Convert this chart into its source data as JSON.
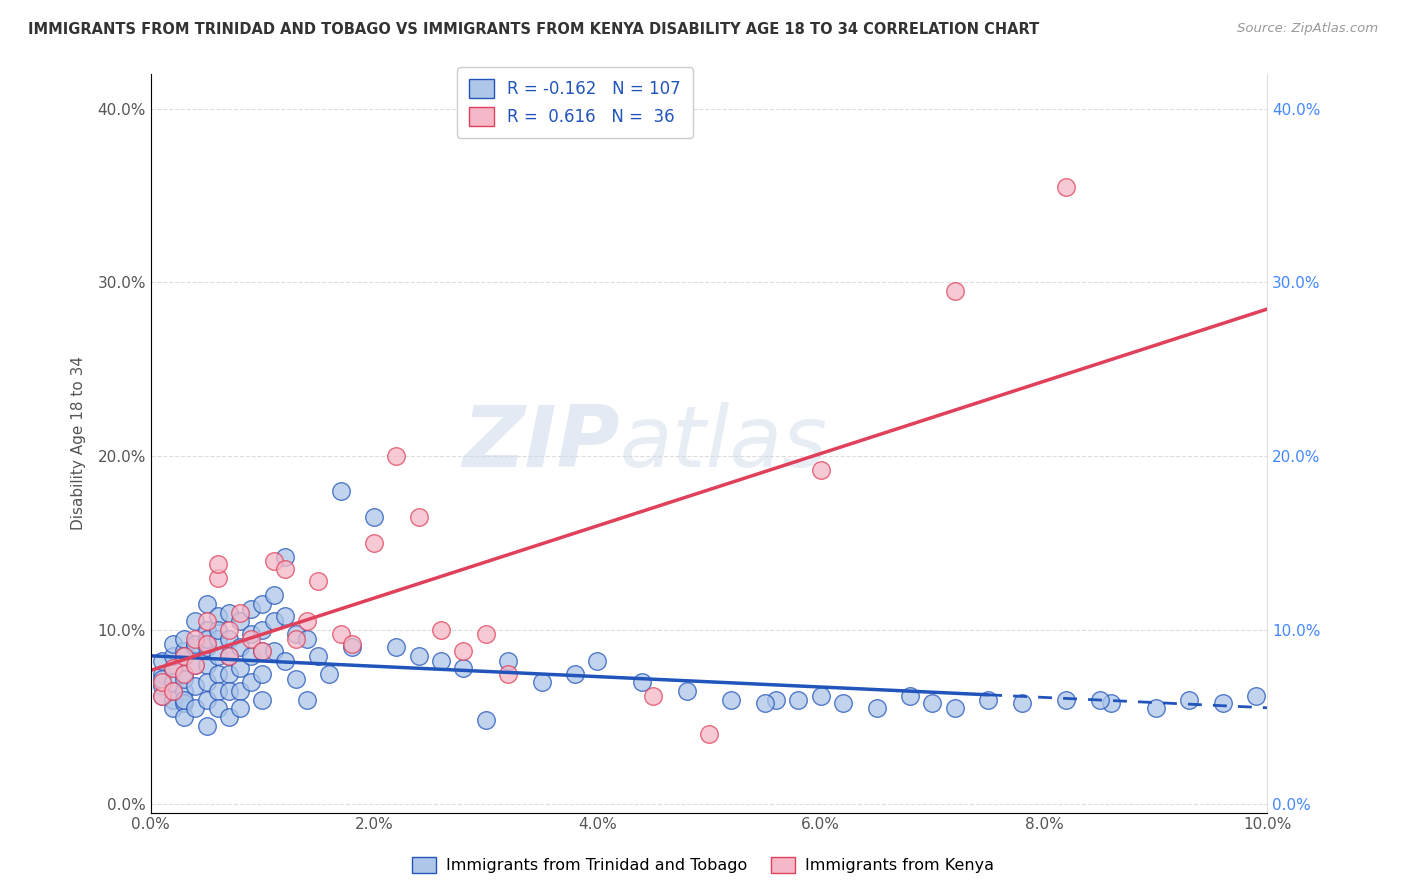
{
  "title": "IMMIGRANTS FROM TRINIDAD AND TOBAGO VS IMMIGRANTS FROM KENYA DISABILITY AGE 18 TO 34 CORRELATION CHART",
  "source": "Source: ZipAtlas.com",
  "ylabel": "Disability Age 18 to 34",
  "legend_label1": "Immigrants from Trinidad and Tobago",
  "legend_label2": "Immigrants from Kenya",
  "R1": -0.162,
  "N1": 107,
  "R2": 0.616,
  "N2": 36,
  "color1": "#aec6e8",
  "color2": "#f5b8c8",
  "line_color1": "#2255bb",
  "line_color2": "#e0405a",
  "xlim": [
    0.0,
    0.1
  ],
  "ylim": [
    -0.005,
    0.42
  ],
  "xticks": [
    0.0,
    0.02,
    0.04,
    0.06,
    0.08,
    0.1
  ],
  "yticks": [
    0.0,
    0.1,
    0.2,
    0.3,
    0.4
  ],
  "background_color": "#ffffff",
  "watermark_zip": "ZIP",
  "watermark_atlas": "atlas",
  "series1_x": [
    0.001,
    0.001,
    0.001,
    0.001,
    0.001,
    0.002,
    0.002,
    0.002,
    0.002,
    0.002,
    0.002,
    0.002,
    0.003,
    0.003,
    0.003,
    0.003,
    0.003,
    0.003,
    0.003,
    0.003,
    0.003,
    0.004,
    0.004,
    0.004,
    0.004,
    0.004,
    0.004,
    0.005,
    0.005,
    0.005,
    0.005,
    0.005,
    0.005,
    0.005,
    0.005,
    0.006,
    0.006,
    0.006,
    0.006,
    0.006,
    0.006,
    0.006,
    0.007,
    0.007,
    0.007,
    0.007,
    0.007,
    0.007,
    0.008,
    0.008,
    0.008,
    0.008,
    0.008,
    0.009,
    0.009,
    0.009,
    0.009,
    0.01,
    0.01,
    0.01,
    0.01,
    0.01,
    0.011,
    0.011,
    0.011,
    0.012,
    0.012,
    0.012,
    0.013,
    0.013,
    0.014,
    0.014,
    0.015,
    0.016,
    0.017,
    0.018,
    0.02,
    0.022,
    0.024,
    0.026,
    0.028,
    0.03,
    0.032,
    0.035,
    0.038,
    0.04,
    0.044,
    0.048,
    0.052,
    0.056,
    0.06,
    0.065,
    0.07,
    0.075,
    0.058,
    0.062,
    0.068,
    0.072,
    0.078,
    0.082,
    0.086,
    0.09,
    0.093,
    0.096,
    0.099,
    0.055,
    0.085
  ],
  "series1_y": [
    0.068,
    0.075,
    0.082,
    0.072,
    0.062,
    0.078,
    0.07,
    0.065,
    0.06,
    0.055,
    0.085,
    0.092,
    0.088,
    0.075,
    0.065,
    0.058,
    0.05,
    0.095,
    0.085,
    0.072,
    0.06,
    0.09,
    0.08,
    0.068,
    0.055,
    0.105,
    0.092,
    0.1,
    0.09,
    0.08,
    0.07,
    0.06,
    0.045,
    0.115,
    0.095,
    0.108,
    0.095,
    0.085,
    0.075,
    0.065,
    0.055,
    0.1,
    0.11,
    0.095,
    0.085,
    0.075,
    0.065,
    0.05,
    0.105,
    0.09,
    0.078,
    0.065,
    0.055,
    0.112,
    0.098,
    0.085,
    0.07,
    0.115,
    0.1,
    0.088,
    0.075,
    0.06,
    0.12,
    0.105,
    0.088,
    0.142,
    0.108,
    0.082,
    0.098,
    0.072,
    0.095,
    0.06,
    0.085,
    0.075,
    0.18,
    0.09,
    0.165,
    0.09,
    0.085,
    0.082,
    0.078,
    0.048,
    0.082,
    0.07,
    0.075,
    0.082,
    0.07,
    0.065,
    0.06,
    0.06,
    0.062,
    0.055,
    0.058,
    0.06,
    0.06,
    0.058,
    0.062,
    0.055,
    0.058,
    0.06,
    0.058,
    0.055,
    0.06,
    0.058,
    0.062,
    0.058,
    0.06
  ],
  "series2_x": [
    0.001,
    0.001,
    0.002,
    0.002,
    0.003,
    0.003,
    0.004,
    0.004,
    0.005,
    0.005,
    0.006,
    0.006,
    0.007,
    0.007,
    0.008,
    0.009,
    0.01,
    0.011,
    0.012,
    0.013,
    0.014,
    0.015,
    0.017,
    0.018,
    0.02,
    0.022,
    0.024,
    0.026,
    0.028,
    0.03,
    0.032,
    0.045,
    0.05,
    0.06,
    0.072,
    0.082
  ],
  "series2_y": [
    0.062,
    0.07,
    0.078,
    0.065,
    0.085,
    0.075,
    0.095,
    0.08,
    0.092,
    0.105,
    0.13,
    0.138,
    0.1,
    0.085,
    0.11,
    0.095,
    0.088,
    0.14,
    0.135,
    0.095,
    0.105,
    0.128,
    0.098,
    0.092,
    0.15,
    0.2,
    0.165,
    0.1,
    0.088,
    0.098,
    0.075,
    0.062,
    0.04,
    0.192,
    0.295,
    0.355
  ],
  "line1_x_solid_end": 0.075,
  "line1_intercept": 0.08,
  "line1_slope": -0.22,
  "line2_intercept": 0.05,
  "line2_slope": 2.5
}
